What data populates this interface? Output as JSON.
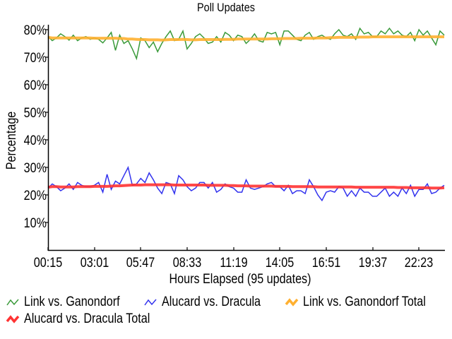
{
  "chart_data": {
    "type": "line",
    "title": "Poll Updates",
    "xlabel": "Hours Elapsed (95 updates)",
    "ylabel": "Percentage",
    "ylim": [
      0,
      82
    ],
    "yticks": [
      "10%",
      "20%",
      "30%",
      "40%",
      "50%",
      "60%",
      "70%",
      "80%"
    ],
    "ytick_values": [
      10,
      20,
      30,
      40,
      50,
      60,
      70,
      80
    ],
    "xticks": [
      "00:15",
      "03:01",
      "05:47",
      "08:33",
      "11:19",
      "14:05",
      "16:51",
      "19:37",
      "22:23"
    ],
    "xtick_indices": [
      0,
      11,
      22,
      33,
      44,
      55,
      66,
      77,
      88
    ],
    "grid": false,
    "legend_position": "bottom",
    "n_points": 95,
    "series": [
      {
        "name": "Link vs. Ganondorf",
        "color": "#3a9a3a",
        "width": 1.5,
        "values": [
          77.5,
          76.0,
          77.0,
          78.5,
          77.5,
          76.2,
          78.0,
          76.0,
          77.0,
          77.5,
          76.5,
          77.0,
          76.5,
          75.2,
          77.0,
          79.0,
          72.5,
          78.0,
          75.0,
          76.0,
          73.0,
          69.5,
          77.0,
          76.0,
          73.5,
          75.5,
          72.0,
          75.0,
          77.5,
          79.5,
          76.0,
          76.5,
          79.5,
          73.0,
          75.0,
          77.5,
          78.5,
          77.0,
          75.0,
          75.5,
          77.5,
          75.5,
          79.0,
          78.0,
          76.0,
          78.0,
          77.5,
          75.0,
          76.5,
          78.5,
          76.0,
          75.5,
          79.0,
          78.5,
          79.0,
          74.5,
          79.5,
          79.5,
          78.0,
          76.5,
          76.0,
          78.0,
          79.0,
          76.5,
          77.5,
          78.0,
          77.0,
          76.5,
          78.5,
          80.0,
          78.0,
          77.5,
          78.5,
          76.5,
          80.5,
          78.5,
          79.0,
          77.5,
          77.5,
          79.5,
          78.5,
          80.5,
          78.5,
          79.5,
          78.0,
          77.5,
          79.0,
          76.0,
          80.0,
          78.0,
          79.5,
          77.0,
          74.5,
          79.5,
          78.0
        ]
      },
      {
        "name": "Alucard vs. Dracula",
        "color": "#3333ee",
        "width": 1.5,
        "values": [
          22.5,
          24.0,
          23.0,
          21.5,
          22.5,
          24.0,
          22.0,
          24.5,
          23.5,
          23.0,
          23.0,
          23.5,
          24.5,
          21.0,
          27.5,
          22.0,
          25.0,
          24.0,
          27.0,
          30.0,
          23.5,
          24.0,
          26.0,
          24.5,
          28.0,
          25.5,
          22.5,
          20.5,
          24.5,
          24.0,
          20.5,
          27.0,
          25.5,
          23.0,
          21.5,
          22.5,
          24.5,
          24.5,
          22.5,
          24.5,
          21.0,
          22.0,
          24.0,
          23.0,
          22.5,
          21.0,
          21.0,
          25.5,
          22.5,
          22.0,
          22.5,
          23.0,
          24.0,
          24.5,
          23.0,
          23.0,
          21.5,
          23.5,
          20.5,
          21.5,
          21.5,
          20.5,
          25.5,
          23.0,
          20.0,
          18.0,
          21.0,
          21.5,
          21.0,
          23.0,
          22.5,
          19.5,
          21.5,
          19.5,
          22.5,
          21.0,
          21.0,
          19.5,
          19.5,
          21.0,
          22.5,
          19.5,
          21.0,
          19.5,
          22.5,
          20.5,
          23.5,
          19.5,
          22.0,
          22.0,
          24.0,
          20.5,
          21.0,
          22.5,
          23.5
        ]
      },
      {
        "name": "Link vs. Ganondorf Total",
        "color": "#ffb030",
        "width": 4,
        "values": [
          77.2,
          77.0,
          77.0,
          77.0,
          77.0,
          77.0,
          77.0,
          77.0,
          77.0,
          77.0,
          77.0,
          76.9,
          76.9,
          76.9,
          76.9,
          76.9,
          76.9,
          76.8,
          76.8,
          76.6,
          76.6,
          76.5,
          76.4,
          76.4,
          76.3,
          76.3,
          76.3,
          76.2,
          76.3,
          76.4,
          76.4,
          76.4,
          76.5,
          76.4,
          76.3,
          76.3,
          76.4,
          76.4,
          76.4,
          76.4,
          76.4,
          76.4,
          76.5,
          76.5,
          76.5,
          76.6,
          76.6,
          76.6,
          76.6,
          76.6,
          76.6,
          76.6,
          76.6,
          76.7,
          76.7,
          76.7,
          76.8,
          76.8,
          76.8,
          76.8,
          76.9,
          76.9,
          76.9,
          76.9,
          77.0,
          77.0,
          77.0,
          77.1,
          77.1,
          77.2,
          77.2,
          77.2,
          77.2,
          77.2,
          77.3,
          77.3,
          77.3,
          77.4,
          77.4,
          77.4,
          77.4,
          77.4,
          77.4,
          77.4,
          77.4,
          77.4,
          77.4,
          77.4,
          77.4,
          77.4,
          77.4,
          77.4,
          77.4,
          77.4,
          77.4
        ]
      },
      {
        "name": "Alucard vs. Dracula Total",
        "color": "#ff3333",
        "width": 4,
        "values": [
          22.8,
          23.0,
          23.0,
          22.9,
          22.9,
          22.9,
          22.9,
          23.0,
          23.0,
          23.0,
          23.0,
          23.1,
          23.1,
          23.1,
          23.1,
          23.2,
          23.3,
          23.3,
          23.4,
          23.5,
          23.6,
          23.6,
          23.6,
          23.7,
          23.7,
          23.7,
          23.7,
          23.7,
          23.7,
          23.7,
          23.6,
          23.6,
          23.6,
          23.6,
          23.6,
          23.6,
          23.6,
          23.6,
          23.5,
          23.5,
          23.5,
          23.5,
          23.5,
          23.4,
          23.4,
          23.3,
          23.3,
          23.3,
          23.2,
          23.2,
          23.2,
          23.2,
          23.2,
          23.2,
          23.1,
          23.1,
          23.1,
          23.1,
          23.0,
          23.0,
          23.0,
          23.0,
          23.0,
          23.0,
          22.9,
          22.9,
          22.9,
          22.9,
          22.9,
          22.9,
          22.9,
          22.9,
          22.9,
          22.8,
          22.8,
          22.8,
          22.8,
          22.8,
          22.8,
          22.8,
          22.8,
          22.8,
          22.8,
          22.7,
          22.7,
          22.7,
          22.6,
          22.6,
          22.6,
          22.6,
          22.6,
          22.5,
          22.5,
          22.5,
          22.6
        ]
      }
    ]
  },
  "legend": {
    "items": [
      {
        "label": "Link vs. Ganondorf",
        "color": "#3a9a3a",
        "thick": false
      },
      {
        "label": "Alucard vs. Dracula",
        "color": "#3333ee",
        "thick": false
      },
      {
        "label": "Link vs. Ganondorf Total",
        "color": "#ffb030",
        "thick": true
      },
      {
        "label": "Alucard vs. Dracula Total",
        "color": "#ff3333",
        "thick": true
      }
    ]
  }
}
